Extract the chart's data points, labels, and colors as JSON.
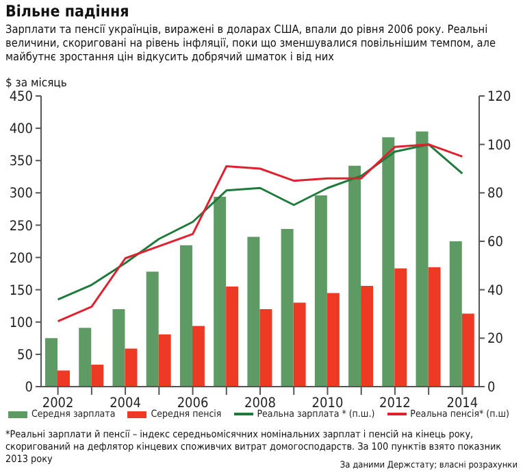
{
  "chart_data": {
    "type": "bar",
    "title": "Вільне падіння",
    "subtitle": "Зарплати та пенсії українців, виражені в доларах США, впали до рівня 2006 року. Реальні величини, скориговані на рівень інфляції, поки що зменшувалися повільнішим темпом, але майбутнє зростання цін відкусить добрячий шматок і від них",
    "ylabel": "$ за місяць",
    "categories": [
      "2002",
      null,
      "2004",
      null,
      "2006",
      null,
      "2008",
      null,
      "2010",
      null,
      "2012",
      null,
      "2014"
    ],
    "series": [
      {
        "name": "Середня зарплата",
        "color": "#5e9a64",
        "values": [
          75,
          91,
          120,
          178,
          219,
          294,
          232,
          244,
          296,
          342,
          386,
          395,
          225
        ]
      },
      {
        "name": "Середня пенсія",
        "color": "#ee3a24",
        "values": [
          25,
          34,
          59,
          81,
          94,
          155,
          120,
          130,
          145,
          156,
          183,
          185,
          113
        ]
      },
      {
        "name": "Реальна зарплата * (п.ш.)",
        "type": "line",
        "axis": "y2",
        "color": "#1e7a3c",
        "values": [
          36,
          42,
          51,
          61,
          68,
          81,
          82,
          75,
          82,
          87,
          97,
          100,
          88
        ]
      },
      {
        "name": "Реальна пенсія* (п.ш)",
        "type": "line",
        "axis": "y2",
        "color": "#e0202e",
        "values": [
          27,
          33,
          53,
          58,
          63,
          91,
          90,
          85,
          86,
          86,
          99,
          100,
          95
        ]
      }
    ],
    "ylim": [
      0,
      450
    ],
    "yticks": [
      0,
      50,
      100,
      150,
      200,
      250,
      300,
      350,
      400,
      450
    ],
    "y2lim": [
      0,
      120
    ],
    "y2ticks": [
      0,
      20,
      40,
      60,
      80,
      100,
      120
    ],
    "legend": "bottom",
    "marker": "none",
    "line_style": "solid",
    "annotations": [
      "*Реальні зарплати й пенсії – індекс середньомісячних номінальних зарплат і пенсій на кінець року, скоригований на дефлятор кінцевих споживчих витрат домогосподарств. За 100 пунктів взято показник 2013 року",
      "За даними Держстату; власні розрахунки"
    ]
  }
}
